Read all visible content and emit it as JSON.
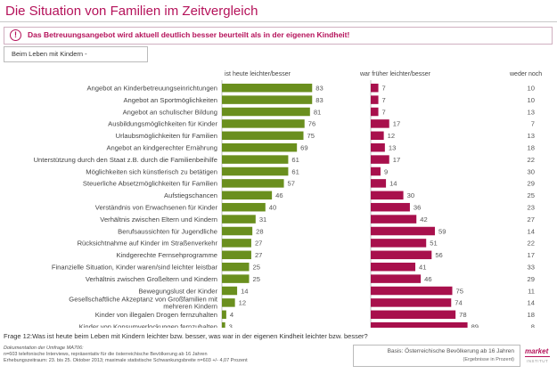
{
  "header": {
    "title": "Die Situation von Familien im Zeitvergleich",
    "banner_icon": "!",
    "banner_text": "Das Betreuungsangebot wird aktuell deutlich besser beurteilt als in der eigenen Kindheit!"
  },
  "selector": {
    "value": "Beim Leben mit Kindern -"
  },
  "chart_data": {
    "type": "bar",
    "title": "",
    "series": [
      {
        "name": "ist heute leichter/besser",
        "color": "#6a8f1e"
      },
      {
        "name": "war früher leichter/besser",
        "color": "#a8104c"
      },
      {
        "name": "weder noch",
        "color": "#555555"
      }
    ],
    "rows": [
      {
        "label": "Angebot an Kinderbetreuungseinrichtungen",
        "heute": 83,
        "frueher": 7,
        "weder": 10
      },
      {
        "label": "Angebot an Sportmöglichkeiten",
        "heute": 83,
        "frueher": 7,
        "weder": 10
      },
      {
        "label": "Angebot an schulischer Bildung",
        "heute": 81,
        "frueher": 7,
        "weder": 13
      },
      {
        "label": "Ausbildungsmöglichkeiten für Kinder",
        "heute": 76,
        "frueher": 17,
        "weder": 7
      },
      {
        "label": "Urlaubsmöglichkeiten für Familien",
        "heute": 75,
        "frueher": 12,
        "weder": 13
      },
      {
        "label": "Angebot an kindgerechter Ernährung",
        "heute": 69,
        "frueher": 13,
        "weder": 18
      },
      {
        "label": "Unterstützung durch den Staat z.B. durch die Familienbeihilfe",
        "heute": 61,
        "frueher": 17,
        "weder": 22
      },
      {
        "label": "Möglichkeiten sich künstlerisch zu betätigen",
        "heute": 61,
        "frueher": 9,
        "weder": 30
      },
      {
        "label": "Steuerliche Absetzmöglichkeiten für Familien",
        "heute": 57,
        "frueher": 14,
        "weder": 29
      },
      {
        "label": "Aufstiegschancen",
        "heute": 46,
        "frueher": 30,
        "weder": 25
      },
      {
        "label": "Verständnis von Erwachsenen für Kinder",
        "heute": 40,
        "frueher": 36,
        "weder": 23
      },
      {
        "label": "Verhältnis zwischen Eltern und Kindern",
        "heute": 31,
        "frueher": 42,
        "weder": 27
      },
      {
        "label": "Berufsaussichten für Jugendliche",
        "heute": 28,
        "frueher": 59,
        "weder": 14
      },
      {
        "label": "Rücksichtnahme auf Kinder im Straßenverkehr",
        "heute": 27,
        "frueher": 51,
        "weder": 22
      },
      {
        "label": "Kindgerechte Fernsehprogramme",
        "heute": 27,
        "frueher": 56,
        "weder": 17
      },
      {
        "label": "Finanzielle Situation, Kinder waren/sind leichter leistbar",
        "heute": 25,
        "frueher": 41,
        "weder": 33
      },
      {
        "label": "Verhältnis zwischen Großeltern und Kindern",
        "heute": 25,
        "frueher": 46,
        "weder": 29
      },
      {
        "label": "Bewegungslust der Kinder",
        "heute": 14,
        "frueher": 75,
        "weder": 11
      },
      {
        "label": "Gesellschaftliche Akzeptanz von Großfamilien mit mehreren Kindern",
        "heute": 12,
        "frueher": 74,
        "weder": 14
      },
      {
        "label": "Kinder von illegalen Drogen fernzuhalten",
        "heute": 4,
        "frueher": 78,
        "weder": 18
      },
      {
        "label": "Kinder von Konsumverlockungen fernzuhalten",
        "heute": 3,
        "frueher": 89,
        "weder": 8
      }
    ]
  },
  "footer": {
    "question": "Frage 12:Was ist heute beim Leben mit Kindern leichter bzw. besser, was war in der eigenen Kindheit leichter bzw. besser?",
    "doc_heading": "Dokumentation der Umfrage MA706:",
    "doc_line1": "n=603 telefonische Interviews, repräsentativ für die österreichische Bevölkerung ab 16 Jahren",
    "doc_line2": "Erhebungszeitraum: 23. bis 25. Oktober 2013; maximale statistische Schwankungsbreite n=603 +/- 4,07 Prozent",
    "basis_main": "Basis: Österreichische Bevölkerung ab 16 Jahren",
    "basis_sub": "(Ergebnisse in Prozent)"
  },
  "logo": {
    "name": "market",
    "sub": "INSTITUT"
  },
  "colors": {
    "accent": "#b5125a",
    "green": "#6a8f1e",
    "red": "#a8104c"
  }
}
